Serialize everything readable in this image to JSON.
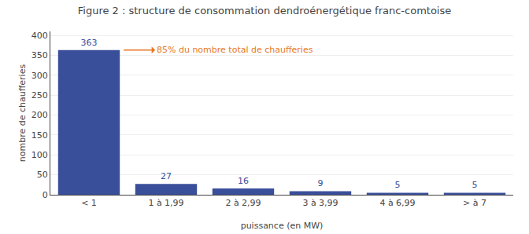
{
  "chart_data": {
    "type": "bar",
    "title": "Figure 2 : structure de consommation dendroénergétique franc-comtoise",
    "xlabel": "puissance (en MW)",
    "ylabel": "nombre de chaufferies",
    "categories": [
      "< 1",
      "1 à 1,99",
      "2 à 2,99",
      "3 à 3,99",
      "4 à 6,99",
      "> à 7"
    ],
    "values": [
      363,
      27,
      16,
      9,
      5,
      5
    ],
    "color": "#3a4f9a",
    "ylim": [
      0,
      410
    ],
    "yticks": [
      0,
      50,
      100,
      150,
      200,
      250,
      300,
      350,
      400
    ],
    "grid": true,
    "data_labels": true,
    "annotations": [
      "85% du nombre total de chaufferies"
    ]
  }
}
